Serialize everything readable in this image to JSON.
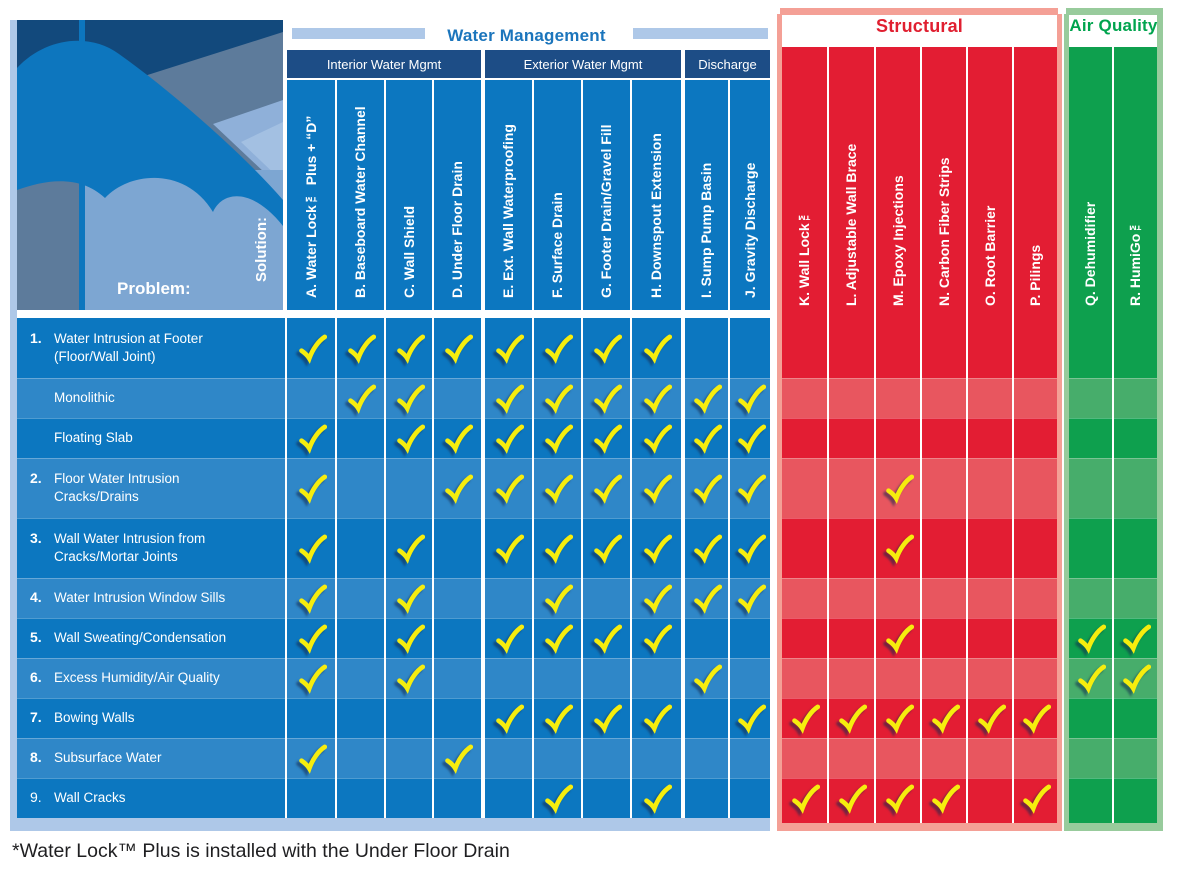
{
  "axis_labels": {
    "solution": "Solution:",
    "problem": "Problem:"
  },
  "footnote": "*Water Lock™ Plus is installed with the Under Floor Drain",
  "colors": {
    "wm_base": "#0c77c0",
    "wm_light": "#2f87c8",
    "wm_frame": "#aec8e8",
    "wm_title": "#1b75bc",
    "navy": "#1d4d86",
    "st_base": "#e31d33",
    "st_light": "#e8565f",
    "st_frame": "#f4a096",
    "st_title": "#e01f30",
    "aq_base": "#0ea04e",
    "aq_light": "#47ad6b",
    "aq_frame": "#98cb9c",
    "aq_title": "#00a44e",
    "check": "#f6ed0e"
  },
  "chart_data": {
    "type": "matrix",
    "title": "Problem / Solution matrix",
    "check_symbol": "✓",
    "sections": [
      {
        "id": "wm",
        "title": "Water Management",
        "subgroups": [
          {
            "label": "Interior Water Mgmt",
            "columns": [
              "A",
              "B",
              "C",
              "D"
            ]
          },
          {
            "label": "Exterior Water Mgmt",
            "columns": [
              "E",
              "F",
              "G",
              "H"
            ]
          },
          {
            "label": "Discharge",
            "columns": [
              "I",
              "J"
            ]
          }
        ]
      },
      {
        "id": "st",
        "title": "Structural",
        "columns": [
          "K",
          "L",
          "M",
          "N",
          "O",
          "P"
        ]
      },
      {
        "id": "aq",
        "title": "Air Quality",
        "columns": [
          "Q",
          "R"
        ]
      }
    ],
    "columns": [
      {
        "id": "A",
        "section": "wm",
        "label": "A.  Water Lock™ Plus + “D”"
      },
      {
        "id": "B",
        "section": "wm",
        "label": "B.  Baseboard Water Channel"
      },
      {
        "id": "C",
        "section": "wm",
        "label": "C.  Wall Shield"
      },
      {
        "id": "D",
        "section": "wm",
        "label": "D.  Under Floor Drain"
      },
      {
        "id": "E",
        "section": "wm",
        "label": "E.  Ext. Wall Waterproofing"
      },
      {
        "id": "F",
        "section": "wm",
        "label": "F.  Surface Drain"
      },
      {
        "id": "G",
        "section": "wm",
        "label": "G.  Footer Drain/Gravel Fill"
      },
      {
        "id": "H",
        "section": "wm",
        "label": "H.  Downspout Extension"
      },
      {
        "id": "I",
        "section": "wm",
        "label": "I.  Sump Pump Basin"
      },
      {
        "id": "J",
        "section": "wm",
        "label": "J.  Gravity Discharge"
      },
      {
        "id": "K",
        "section": "st",
        "label": "K.  Wall Lock™"
      },
      {
        "id": "L",
        "section": "st",
        "label": "L.  Adjustable Wall Brace"
      },
      {
        "id": "M",
        "section": "st",
        "label": "M. Epoxy Injections"
      },
      {
        "id": "N",
        "section": "st",
        "label": "N.  Carbon Fiber Strips"
      },
      {
        "id": "O",
        "section": "st",
        "label": "O. Root Barrier"
      },
      {
        "id": "P",
        "section": "st",
        "label": "P.  Pilings"
      },
      {
        "id": "Q",
        "section": "aq",
        "label": "Q.  Dehumidifier"
      },
      {
        "id": "R",
        "section": "aq",
        "label": "R.  HumiGo™"
      }
    ],
    "rows": [
      {
        "num": "1.",
        "num_bold": true,
        "lines": [
          "Water Intrusion at Footer",
          "(Floor/Wall Joint)"
        ],
        "label": "Water Intrusion at Footer (Floor/Wall Joint)",
        "checks": [
          "A",
          "B",
          "C",
          "D",
          "E",
          "F",
          "G",
          "H"
        ]
      },
      {
        "num": "",
        "num_bold": true,
        "lines": [
          "Monolithic"
        ],
        "label": "Monolithic",
        "checks": [
          "B",
          "C",
          "E",
          "F",
          "G",
          "H",
          "I",
          "J"
        ]
      },
      {
        "num": "",
        "num_bold": true,
        "lines": [
          "Floating Slab"
        ],
        "label": "Floating Slab",
        "checks": [
          "A",
          "C",
          "D",
          "E",
          "F",
          "G",
          "H",
          "I",
          "J"
        ]
      },
      {
        "num": "2.",
        "num_bold": true,
        "lines": [
          "Floor Water Intrusion",
          "Cracks/Drains"
        ],
        "label": "Floor Water Intrusion Cracks/Drains",
        "checks": [
          "A",
          "D",
          "E",
          "F",
          "G",
          "H",
          "I",
          "J",
          "M"
        ]
      },
      {
        "num": "3.",
        "num_bold": true,
        "lines": [
          "Wall Water Intrusion from",
          "Cracks/Mortar Joints"
        ],
        "label": "Wall Water Intrusion from Cracks/Mortar Joints",
        "checks": [
          "A",
          "C",
          "E",
          "F",
          "G",
          "H",
          "I",
          "J",
          "M"
        ]
      },
      {
        "num": "4.",
        "num_bold": true,
        "lines": [
          "Water Intrusion Window Sills"
        ],
        "label": "Water Intrusion Window Sills",
        "checks": [
          "A",
          "C",
          "F",
          "H",
          "I",
          "J"
        ]
      },
      {
        "num": "5.",
        "num_bold": true,
        "lines": [
          "Wall Sweating/Condensation"
        ],
        "label": "Wall Sweating/Condensation",
        "checks": [
          "A",
          "C",
          "E",
          "F",
          "G",
          "H",
          "M",
          "Q",
          "R"
        ]
      },
      {
        "num": "6.",
        "num_bold": true,
        "lines": [
          "Excess Humidity/Air Quality"
        ],
        "label": "Excess Humidity/Air Quality",
        "checks": [
          "A",
          "C",
          "I",
          "Q",
          "R"
        ]
      },
      {
        "num": "7.",
        "num_bold": true,
        "lines": [
          "Bowing Walls"
        ],
        "label": "Bowing Walls",
        "checks": [
          "E",
          "F",
          "G",
          "H",
          "J",
          "K",
          "L",
          "M",
          "N",
          "O",
          "P"
        ]
      },
      {
        "num": "8.",
        "num_bold": true,
        "lines": [
          "Subsurface Water"
        ],
        "label": "Subsurface Water",
        "checks": [
          "A",
          "D"
        ]
      },
      {
        "num": "9.",
        "num_bold": false,
        "lines": [
          "Wall Cracks"
        ],
        "label": "Wall Cracks",
        "checks": [
          "F",
          "H",
          "K",
          "L",
          "M",
          "N",
          "P"
        ]
      }
    ]
  }
}
